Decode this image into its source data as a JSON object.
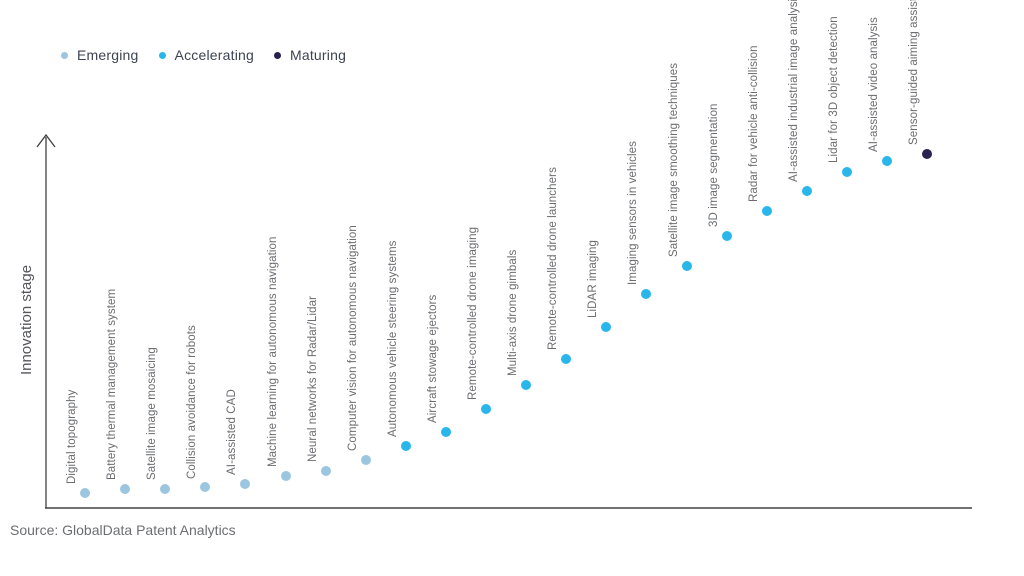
{
  "source": "Source: GlobalData Patent Analytics",
  "chart_data": {
    "type": "scatter",
    "title": "",
    "xlabel": "",
    "ylabel": "Innovation stage",
    "legend_position": "top-left",
    "grid": false,
    "x_axis": {
      "ticks": "none"
    },
    "y_axis": {
      "label": "Innovation stage",
      "ticks": "none",
      "range": [
        0,
        100
      ],
      "arrow": true
    },
    "legend": [
      {
        "label": "Emerging",
        "color": "#9cc6e0"
      },
      {
        "label": "Accelerating",
        "color": "#29b6ea"
      },
      {
        "label": "Maturing",
        "color": "#27224f"
      }
    ],
    "points": [
      {
        "label": "Digital topography",
        "stage": "Emerging",
        "value": 4
      },
      {
        "label": "Battery thermal management system",
        "stage": "Emerging",
        "value": 5
      },
      {
        "label": "Satellite image mosaicing",
        "stage": "Emerging",
        "value": 5
      },
      {
        "label": "Collision avoidance for robots",
        "stage": "Emerging",
        "value": 5.5
      },
      {
        "label": "AI-assisted CAD",
        "stage": "Emerging",
        "value": 6.5
      },
      {
        "label": "Machine learning for autonomous navigation",
        "stage": "Emerging",
        "value": 8.5
      },
      {
        "label": "Neural networks for Radar/Lidar",
        "stage": "Emerging",
        "value": 10
      },
      {
        "label": "Computer vision for autonomous navigation",
        "stage": "Emerging",
        "value": 13
      },
      {
        "label": "Autonomous vehicle steering systems",
        "stage": "Accelerating",
        "value": 16.5
      },
      {
        "label": "Aircraft stowage ejectors",
        "stage": "Accelerating",
        "value": 20.5
      },
      {
        "label": "Remote-controlled drone imaging",
        "stage": "Accelerating",
        "value": 26.5
      },
      {
        "label": "Multi-axis drone gimbals",
        "stage": "Accelerating",
        "value": 33
      },
      {
        "label": "Remote-controlled drone launchers",
        "stage": "Accelerating",
        "value": 40
      },
      {
        "label": "LiDAR imaging",
        "stage": "Accelerating",
        "value": 48.5
      },
      {
        "label": "Imaging sensors in vehicles",
        "stage": "Accelerating",
        "value": 57.5
      },
      {
        "label": "Satellite image smoothing techniques",
        "stage": "Accelerating",
        "value": 65
      },
      {
        "label": "3D image segmentation",
        "stage": "Accelerating",
        "value": 73
      },
      {
        "label": "Radar for vehicle anti-collision",
        "stage": "Accelerating",
        "value": 79.5
      },
      {
        "label": "AI-assisted industrial image analysis",
        "stage": "Accelerating",
        "value": 85
      },
      {
        "label": "Lidar for 3D object detection",
        "stage": "Accelerating",
        "value": 90
      },
      {
        "label": "AI-assisted video analysis",
        "stage": "Accelerating",
        "value": 93
      },
      {
        "label": "Sensor-guided aiming assists",
        "stage": "Maturing",
        "value": 95
      }
    ]
  }
}
